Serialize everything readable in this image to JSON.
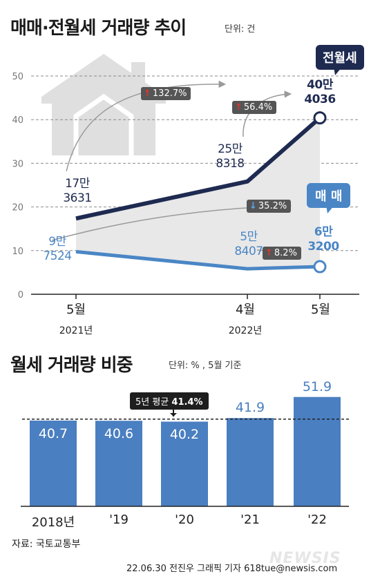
{
  "top": {
    "title": "매매·전월세 거래량 추이",
    "unit": "단위: 건",
    "callouts": {
      "rent": "전월세",
      "sale": "매 매"
    },
    "pills": [
      {
        "dir": "up",
        "text": "132.7%"
      },
      {
        "dir": "up",
        "text": "56.4%"
      },
      {
        "dir": "down",
        "text": "35.2%"
      },
      {
        "dir": "up",
        "text": "8.2%"
      }
    ],
    "point_labels": {
      "rent_1": [
        "17만",
        "3631"
      ],
      "rent_2": [
        "25만",
        "8318"
      ],
      "rent_3": [
        "40만",
        "4036"
      ],
      "sale_1": [
        "9만",
        "7524"
      ],
      "sale_2": [
        "5만",
        "8407"
      ],
      "sale_3": [
        "6만",
        "3200"
      ]
    },
    "x_labels": [
      {
        "month": "5월",
        "year": "2021년"
      },
      {
        "month": "4월",
        "year": "2022년"
      },
      {
        "month": "5월",
        "year": ""
      }
    ],
    "colors": {
      "rent": "#1e2a50",
      "sale": "#4a86c5",
      "fill": "#e8e8e8"
    }
  },
  "bottom": {
    "title": "월세 거래량 비중",
    "unit": "단위: % , 5월 기준",
    "avg_label_prefix": "5년 평균 ",
    "avg_label_value": "41.4%",
    "colors": {
      "bar": "#4a7fc1"
    }
  },
  "chart_data": [
    {
      "type": "line",
      "title": "매매·전월세 거래량 추이",
      "unit": "만 건",
      "x": [
        "2021-05",
        "2022-04",
        "2022-05"
      ],
      "yticks": [
        0,
        10,
        20,
        30,
        40,
        50
      ],
      "ylim": [
        0,
        50
      ],
      "grid": true,
      "series": [
        {
          "name": "전월세",
          "values": [
            17.3631,
            25.8318,
            40.4036
          ],
          "labels": [
            "17만 3631",
            "25만 8318",
            "40만 4036"
          ]
        },
        {
          "name": "매매",
          "values": [
            9.7524,
            5.8407,
            6.32
          ],
          "labels": [
            "9만 7524",
            "5만 8407",
            "6만 3200"
          ]
        }
      ],
      "annotations": [
        "132.7%",
        "56.4%",
        "35.2%",
        "8.2%"
      ]
    },
    {
      "type": "bar",
      "title": "월세 거래량 비중",
      "unit": "%",
      "categories": [
        "2018년",
        "'19",
        "'20",
        "'21",
        "'22"
      ],
      "values": [
        40.7,
        40.6,
        40.2,
        41.9,
        51.9
      ],
      "value_labels": [
        "40.7",
        "40.6",
        "40.2",
        "41.9",
        "51.9"
      ],
      "average": 41.4,
      "ylim": [
        0,
        60
      ]
    }
  ],
  "footer": {
    "source": "자료: 국토교통부",
    "credit": "22.06.30 전진우 그래픽 기자 618tue@newsis.com",
    "watermark": "NEWSIS"
  }
}
